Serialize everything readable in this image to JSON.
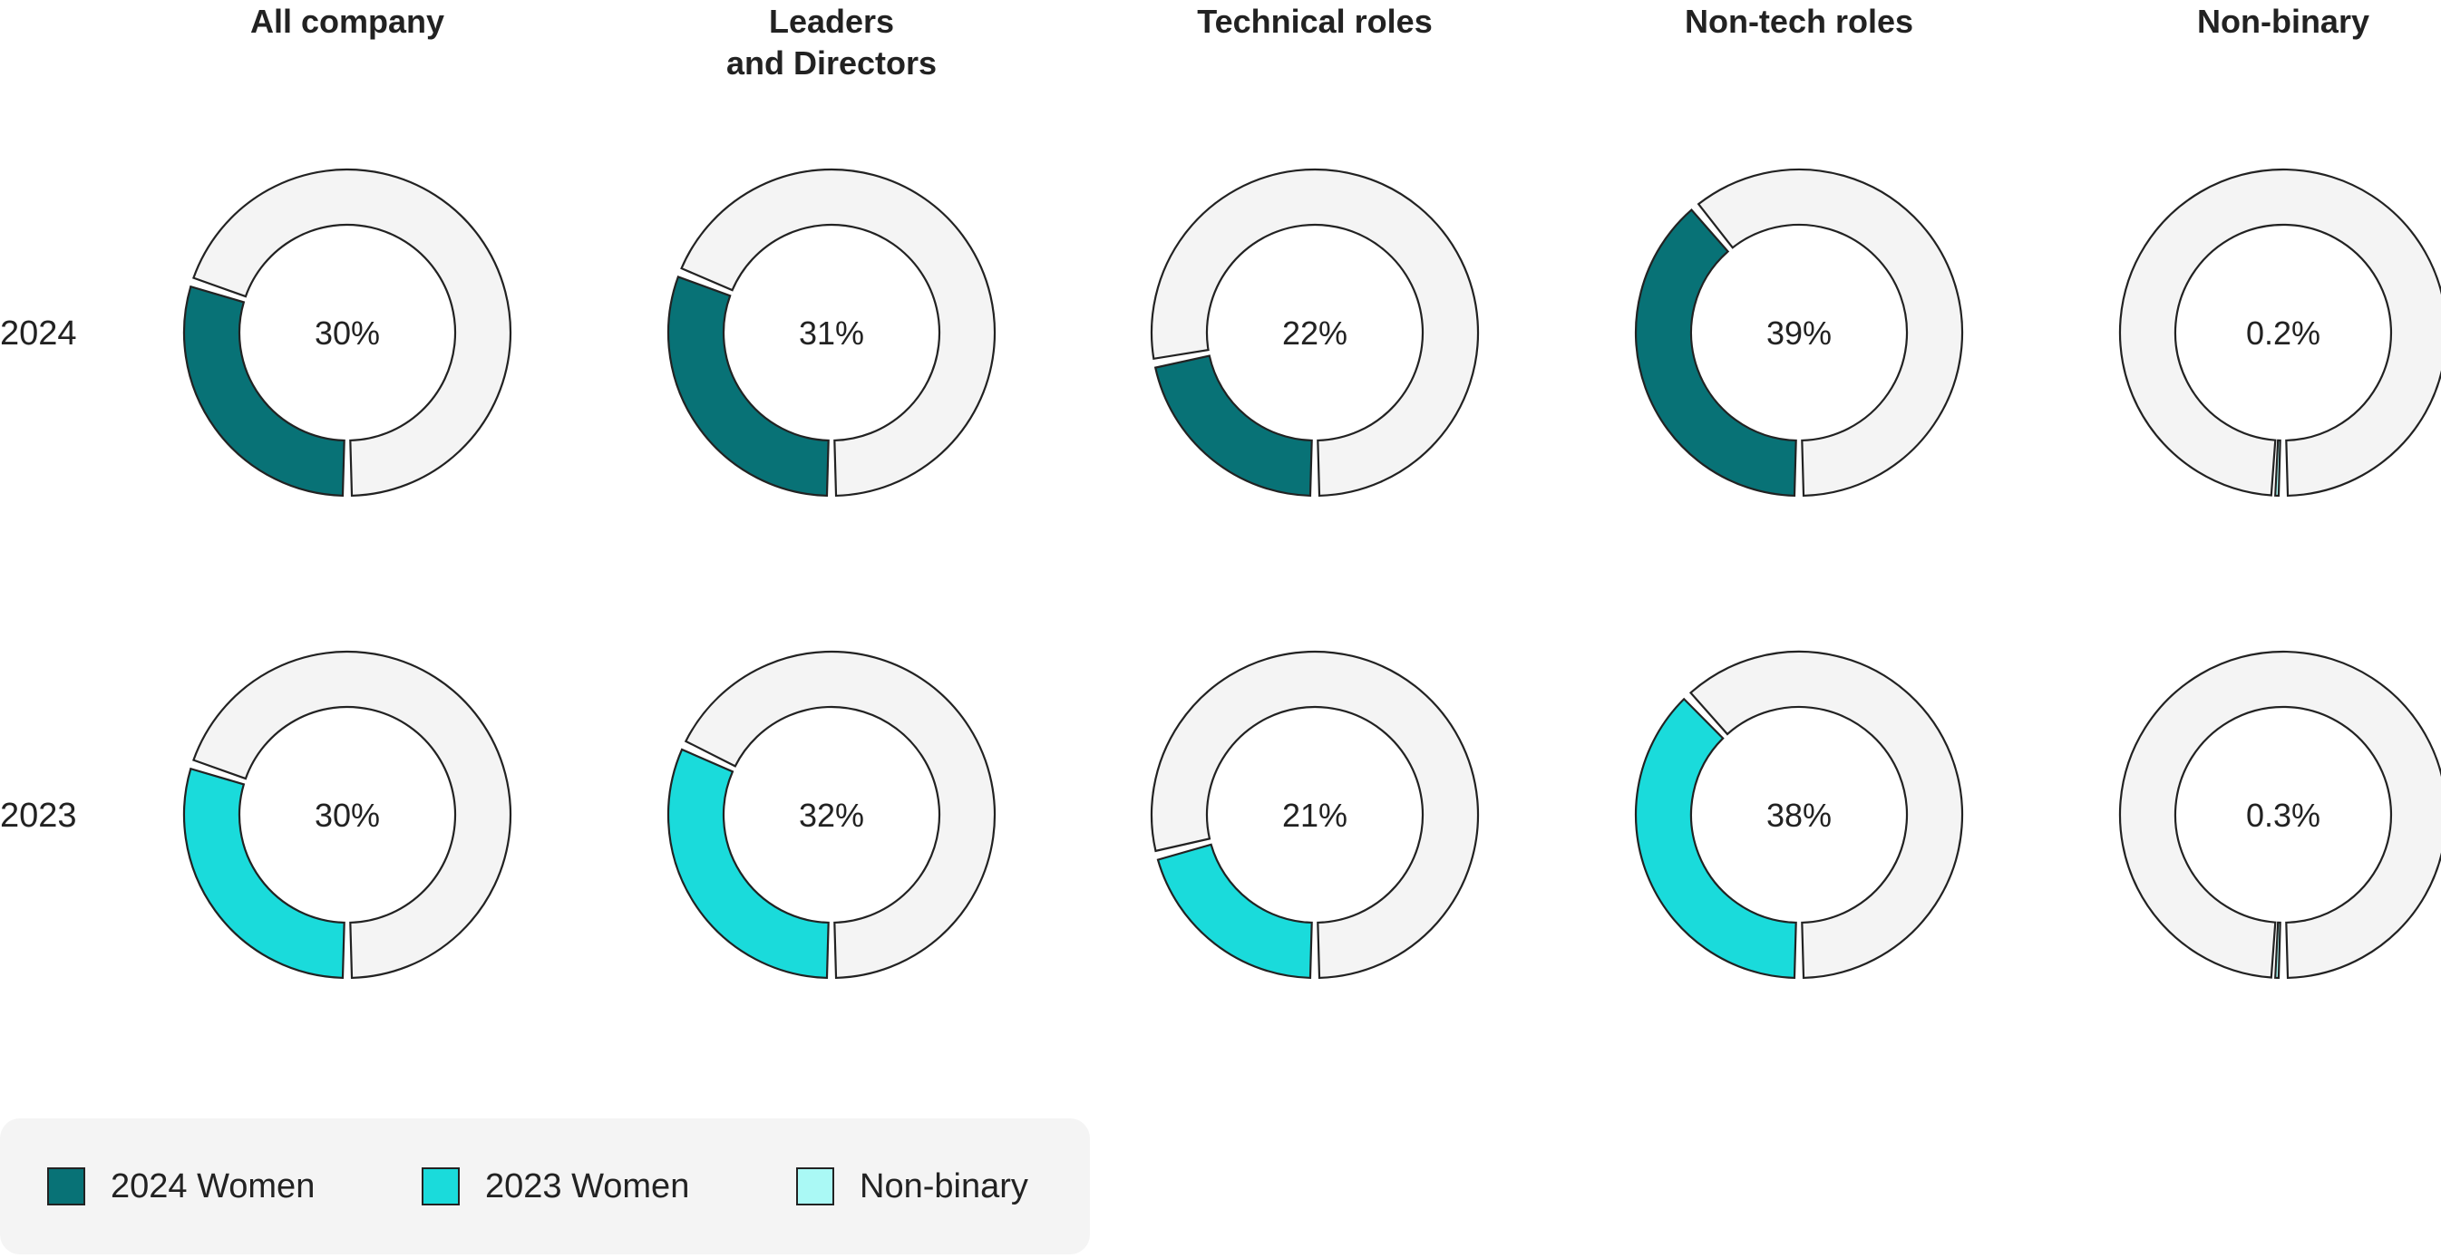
{
  "colors": {
    "women_2024": "#087276",
    "women_2023": "#1adbdb",
    "nonbinary": "#aaf9f5",
    "remainder": "#f4f4f4",
    "stroke": "#222222"
  },
  "chart_data": {
    "type": "pie",
    "variant": "donut-grid",
    "columns": [
      {
        "title": [
          "All company"
        ]
      },
      {
        "title": [
          "Leaders",
          "and Directors"
        ]
      },
      {
        "title": [
          "Technical roles"
        ]
      },
      {
        "title": [
          "Non-tech roles"
        ]
      },
      {
        "title": [
          "Non-binary"
        ]
      }
    ],
    "rows": [
      {
        "label": "2024",
        "color_key": "women_2024"
      },
      {
        "label": "2023",
        "color_key": "women_2023"
      }
    ],
    "values": [
      [
        {
          "value": 30,
          "label": "30%",
          "color_key": "women_2024"
        },
        {
          "value": 31,
          "label": "31%",
          "color_key": "women_2024"
        },
        {
          "value": 22,
          "label": "22%",
          "color_key": "women_2024"
        },
        {
          "value": 39,
          "label": "39%",
          "color_key": "women_2024"
        },
        {
          "value": 0.2,
          "label": "0.2%",
          "color_key": "nonbinary"
        }
      ],
      [
        {
          "value": 30,
          "label": "30%",
          "color_key": "women_2023"
        },
        {
          "value": 32,
          "label": "32%",
          "color_key": "women_2023"
        },
        {
          "value": 21,
          "label": "21%",
          "color_key": "women_2023"
        },
        {
          "value": 38,
          "label": "38%",
          "color_key": "women_2023"
        },
        {
          "value": 0.3,
          "label": "0.3%",
          "color_key": "nonbinary"
        }
      ]
    ],
    "legend": [
      {
        "label": "2024 Women",
        "color_key": "women_2024"
      },
      {
        "label": "2023 Women",
        "color_key": "women_2023"
      },
      {
        "label": "Non-binary",
        "color_key": "nonbinary"
      }
    ],
    "legend_position": "bottom-left"
  }
}
